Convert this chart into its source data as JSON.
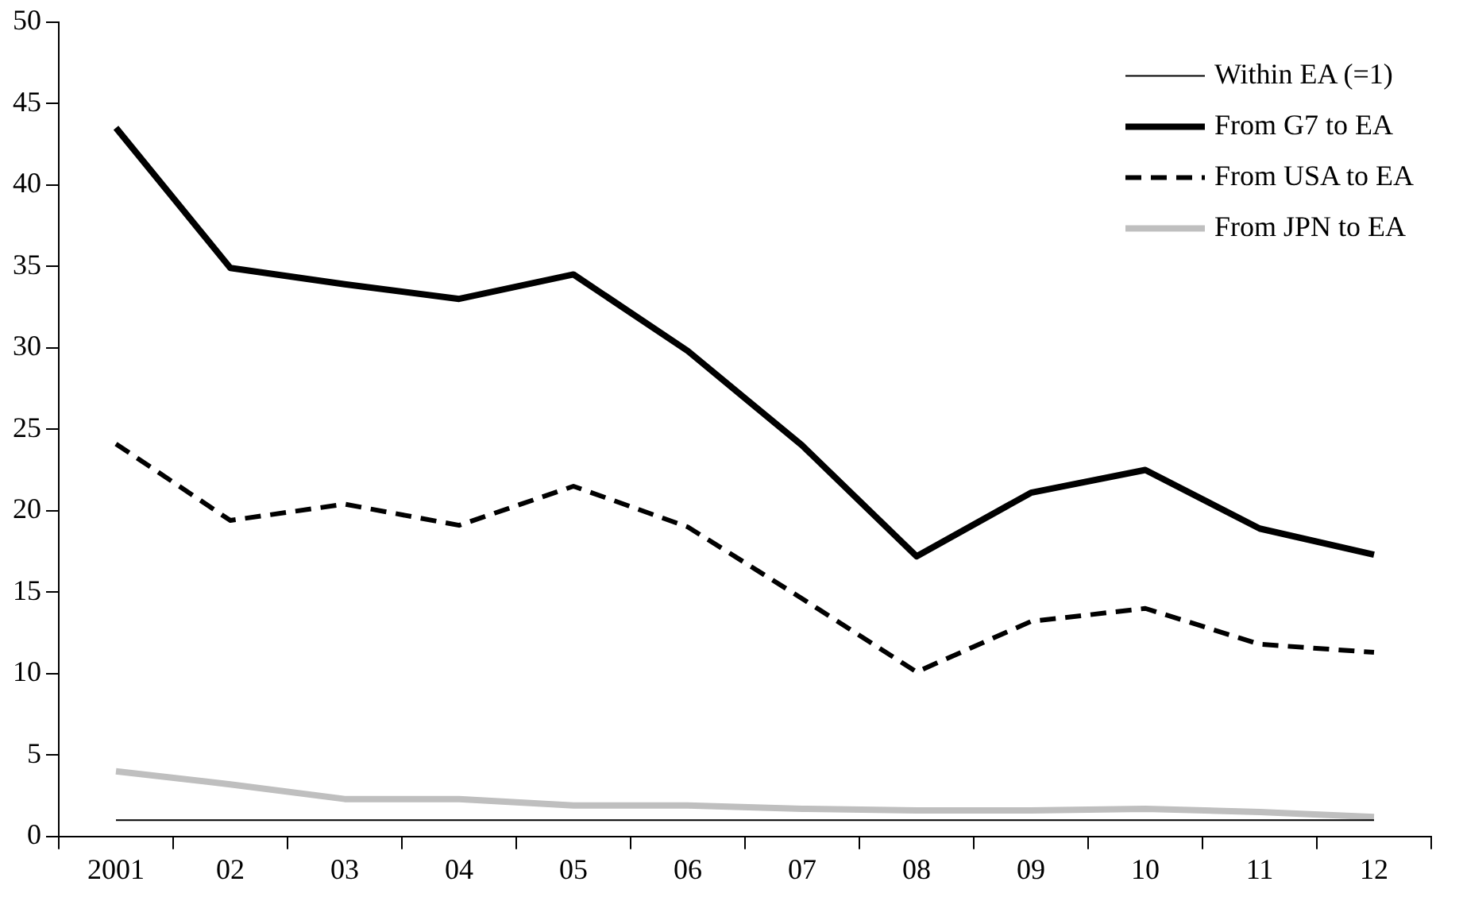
{
  "chart_data": {
    "type": "line",
    "categories": [
      "2001",
      "02",
      "03",
      "04",
      "05",
      "06",
      "07",
      "08",
      "09",
      "10",
      "11",
      "12"
    ],
    "series": [
      {
        "name": "Within EA (=1)",
        "color": "#000000",
        "line_style": "solid",
        "values": [
          1,
          1,
          1,
          1,
          1,
          1,
          1,
          1,
          1,
          1,
          1,
          1
        ]
      },
      {
        "name": "From G7 to EA",
        "color": "#000000",
        "line_style": "solid",
        "values": [
          43.5,
          34.9,
          33.9,
          33.0,
          34.5,
          29.8,
          24.0,
          17.2,
          21.1,
          22.5,
          18.9,
          17.3
        ]
      },
      {
        "name": "From USA to EA",
        "color": "#000000",
        "line_style": "dashed",
        "values": [
          24.1,
          19.4,
          20.4,
          19.1,
          21.5,
          19.0,
          14.6,
          10.1,
          13.2,
          14.0,
          11.8,
          11.3
        ]
      },
      {
        "name": "From JPN to EA",
        "color": "#bfbfbf",
        "line_style": "solid",
        "values": [
          4.0,
          3.2,
          2.3,
          2.3,
          1.9,
          1.9,
          1.7,
          1.6,
          1.6,
          1.7,
          1.5,
          1.2
        ]
      }
    ],
    "ylim": [
      0,
      50
    ],
    "yticks": [
      0,
      5,
      10,
      15,
      20,
      25,
      30,
      35,
      40,
      45,
      50
    ],
    "grid": false,
    "legend": "top right",
    "marker": "none"
  }
}
